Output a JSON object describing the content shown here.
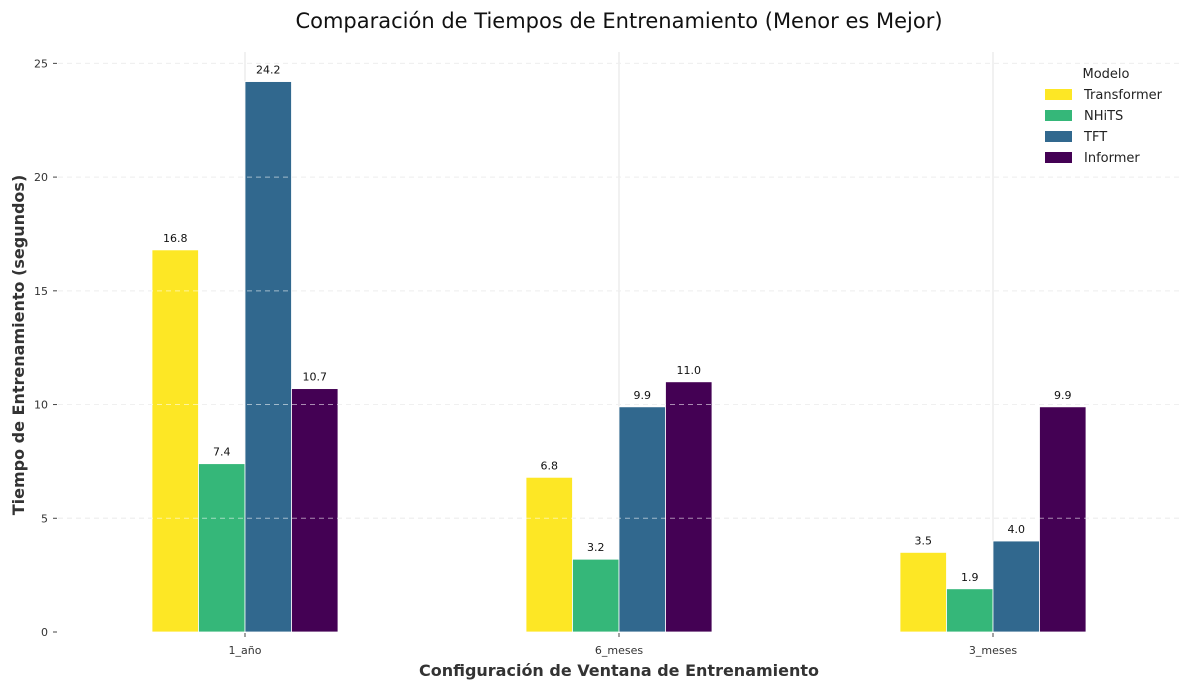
{
  "chart_data": {
    "type": "bar",
    "title": "Comparación de Tiempos de Entrenamiento (Menor es Mejor)",
    "xlabel": "Configuración de Ventana de Entrenamiento",
    "ylabel": "Tiempo de Entrenamiento (segundos)",
    "categories": [
      "1_año",
      "6_meses",
      "3_meses"
    ],
    "series": [
      {
        "name": "Transformer",
        "values": [
          16.8,
          6.8,
          3.5
        ],
        "color": "#fde725"
      },
      {
        "name": "NHiTS",
        "values": [
          7.4,
          3.2,
          1.9
        ],
        "color": "#35b779"
      },
      {
        "name": "TFT",
        "values": [
          24.2,
          9.9,
          4.0
        ],
        "color": "#31688e"
      },
      {
        "name": "Informer",
        "values": [
          10.7,
          11.0,
          9.9
        ],
        "color": "#440154"
      }
    ],
    "ylim": [
      0,
      25.5
    ],
    "yticks": [
      0,
      5,
      10,
      15,
      20,
      25
    ],
    "grid": true,
    "legend": {
      "title": "Modelo",
      "placement": "top-right"
    }
  }
}
